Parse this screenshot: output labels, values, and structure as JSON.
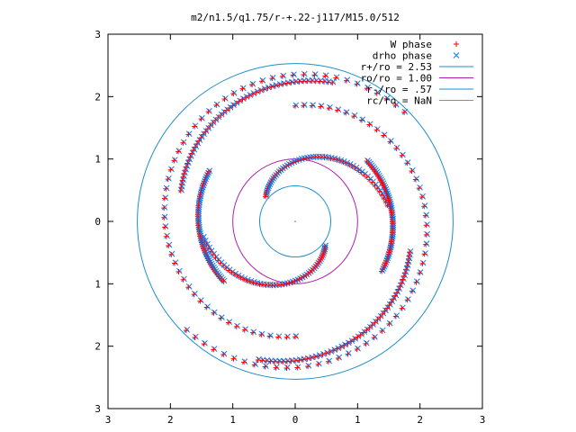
{
  "chart_data": {
    "type": "scatter",
    "title": "m2/n1.5/q1.75/r-+.22-j117/M15.0/512",
    "xlim": [
      -3,
      3
    ],
    "ylim": [
      -3,
      3
    ],
    "x_ticks": [
      -3,
      -2,
      -1,
      0,
      1,
      2,
      3
    ],
    "y_ticks": [
      -3,
      -2,
      -1,
      0,
      1,
      2,
      3
    ],
    "x_tick_labels": [
      "3",
      "2",
      "1",
      "0",
      "1",
      "2",
      "3"
    ],
    "y_tick_labels": [
      "3",
      "2",
      "1",
      "0",
      "1",
      "2",
      "3"
    ],
    "grid": false,
    "legend_position": "top-right",
    "legend": [
      {
        "label": "W phase",
        "kind": "point",
        "marker": "plus",
        "color": "#ff0000"
      },
      {
        "label": "drho phase",
        "kind": "point",
        "marker": "cross",
        "color": "#0080ff"
      },
      {
        "label": "r+/ro = 2.53",
        "kind": "line",
        "color": "#1e8fc8",
        "radius": 2.53
      },
      {
        "label": "ro/ro = 1.00",
        "kind": "line",
        "color": "#b020b0",
        "radius": 1.0
      },
      {
        "label": "r-/ro = .57",
        "kind": "line",
        "color": "#1e8fc8",
        "radius": 0.57
      },
      {
        "label": "rc/ro = NaN",
        "kind": "line",
        "color": "#00c0e0"
      }
    ],
    "arms": [
      {
        "name": "outer-left",
        "r_start": 2.47,
        "r_end": 1.85,
        "theta_start_deg": 45,
        "theta_end_deg": 270
      },
      {
        "name": "outer-right",
        "r_start": 2.47,
        "r_end": 1.85,
        "theta_start_deg": 225,
        "theta_end_deg": 450
      },
      {
        "name": "mid-upper-left",
        "r_start": 2.3,
        "r_end": 1.9,
        "theta_start_deg": 75,
        "theta_end_deg": 165
      },
      {
        "name": "mid-lower-right",
        "r_start": 2.3,
        "r_end": 1.9,
        "theta_start_deg": 255,
        "theta_end_deg": 345
      },
      {
        "name": "inner-upper",
        "r_start": 1.5,
        "r_end": 0.62,
        "theta_start_deg": 10,
        "theta_end_deg": 140
      },
      {
        "name": "inner-lower",
        "r_start": 1.5,
        "r_end": 0.62,
        "theta_start_deg": 190,
        "theta_end_deg": 320
      },
      {
        "name": "arc-right",
        "r_start": 1.6,
        "r_end": 1.5,
        "theta_start_deg": -30,
        "theta_end_deg": 40
      },
      {
        "name": "arc-left",
        "r_start": 1.6,
        "r_end": 1.5,
        "theta_start_deg": 150,
        "theta_end_deg": 220
      }
    ]
  }
}
